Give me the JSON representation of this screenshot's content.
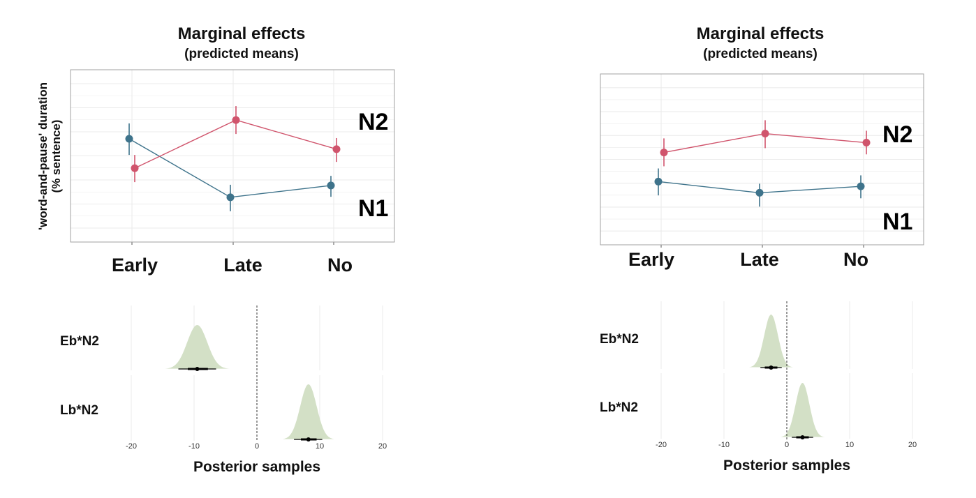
{
  "colors": {
    "N1": "#3e738b",
    "N2": "#d0546c",
    "posterior_fill": "#d3e0c6",
    "grid": "#ebebeb",
    "panel_border": "#a0a0a0"
  },
  "chart_data": [
    {
      "type": "line",
      "panel": "top-left",
      "title": "Marginal effects",
      "subtitle": "(predicted means)",
      "xlabel": "",
      "ylabel": "'word-and-pause' duration",
      "ylabel_line2": "(% sentence)",
      "y_ticks_labeled": false,
      "ylim": [
        -0.58,
        6.58
      ],
      "grid": true,
      "categories": [
        "Early",
        "Late",
        "No"
      ],
      "series": [
        {
          "name": "N1",
          "label": "N1",
          "values": [
            3.71,
            1.28,
            1.77
          ],
          "lower": [
            3.04,
            0.7,
            1.3
          ],
          "upper": [
            4.35,
            1.8,
            2.17
          ]
        },
        {
          "name": "N2",
          "label": "N2",
          "values": [
            2.49,
            4.49,
            3.28
          ],
          "lower": [
            1.91,
            3.91,
            2.75
          ],
          "upper": [
            3.04,
            5.07,
            3.74
          ]
        }
      ],
      "legend": "direct labels at right"
    },
    {
      "type": "line",
      "panel": "top-right",
      "title": "Marginal effects",
      "subtitle": "(predicted means)",
      "xlabel": "",
      "ylabel": "",
      "y_ticks_labeled": false,
      "ylim": [
        -0.58,
        6.58
      ],
      "grid": true,
      "categories": [
        "Early",
        "Late",
        "No"
      ],
      "series": [
        {
          "name": "N1",
          "label": "N1",
          "values": [
            2.07,
            1.6,
            1.87
          ],
          "lower": [
            1.49,
            1.02,
            1.37
          ],
          "upper": [
            2.62,
            1.98,
            2.33
          ]
        },
        {
          "name": "N2",
          "label": "N2",
          "values": [
            3.29,
            4.08,
            3.7
          ],
          "lower": [
            2.71,
            3.47,
            3.21
          ],
          "upper": [
            3.88,
            4.64,
            4.2
          ]
        }
      ],
      "legend": "direct labels at right"
    },
    {
      "type": "area",
      "subtype": "posterior density (halfeye)",
      "panel": "bottom-left",
      "xlabel": "Posterior samples",
      "xlim": [
        -22,
        22
      ],
      "x_ticks": [
        -20,
        -10,
        0,
        10,
        20
      ],
      "x_tick_labels": [
        "-20",
        "-10",
        "0",
        "10",
        "20"
      ],
      "reference_line": 0,
      "grid": true,
      "rows": [
        {
          "label": "Eb*N2",
          "mean": -9.5,
          "sd": 1.6,
          "interval_66": [
            -11.0,
            -7.8
          ],
          "interval_95": [
            -12.5,
            -6.5
          ]
        },
        {
          "label": "Lb*N2",
          "mean": 8.2,
          "sd": 1.3,
          "interval_66": [
            7.0,
            9.5
          ],
          "interval_95": [
            5.9,
            10.4
          ]
        }
      ]
    },
    {
      "type": "area",
      "subtype": "posterior density (halfeye)",
      "panel": "bottom-right",
      "xlabel": "Posterior samples",
      "xlim": [
        -22,
        22
      ],
      "x_ticks": [
        -20,
        -10,
        0,
        10,
        20
      ],
      "x_tick_labels": [
        "-20",
        "-10",
        "0",
        "10",
        "20"
      ],
      "reference_line": 0,
      "grid": true,
      "rows": [
        {
          "label": "Eb*N2",
          "mean": -2.5,
          "sd": 1.1,
          "interval_66": [
            -3.5,
            -1.5
          ],
          "interval_95": [
            -4.2,
            -0.8
          ]
        },
        {
          "label": "Lb*N2",
          "mean": 2.5,
          "sd": 1.1,
          "interval_66": [
            1.5,
            3.5
          ],
          "interval_95": [
            0.8,
            4.2
          ]
        }
      ]
    }
  ]
}
